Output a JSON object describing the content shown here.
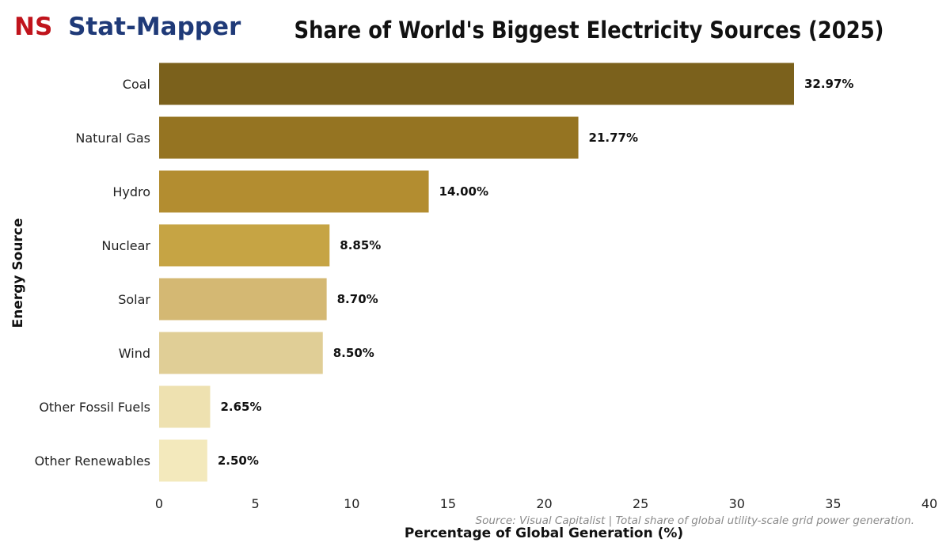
{
  "brand": {
    "prefix": "NS",
    "name": "Stat-Mapper",
    "prefix_color": "#c0141c",
    "name_color": "#1f3a78"
  },
  "source_note": "Source: Visual Capitalist | Total share of global utility-scale grid power generation.",
  "chart_data": {
    "type": "bar",
    "orientation": "horizontal",
    "title": "Share of World's Biggest Electricity Sources (2025)",
    "xlabel": "Percentage of Global Generation (%)",
    "ylabel": "Energy Source",
    "xlim": [
      0,
      40
    ],
    "x_ticks": [
      0,
      5,
      10,
      15,
      20,
      25,
      30,
      35,
      40
    ],
    "grid": false,
    "categories": [
      "Coal",
      "Natural Gas",
      "Hydro",
      "Nuclear",
      "Solar",
      "Wind",
      "Other Fossil Fuels",
      "Other Renewables"
    ],
    "values": [
      32.97,
      21.77,
      14.0,
      8.85,
      8.7,
      8.5,
      2.65,
      2.5
    ],
    "value_labels": [
      "32.97%",
      "21.77%",
      "14.00%",
      "8.85%",
      "8.70%",
      "8.50%",
      "2.65%",
      "2.50%"
    ],
    "colors": [
      "#7b611c",
      "#957422",
      "#b38d30",
      "#c6a444",
      "#d4b873",
      "#e0ce96",
      "#eee1b0",
      "#f3e9bc"
    ]
  }
}
